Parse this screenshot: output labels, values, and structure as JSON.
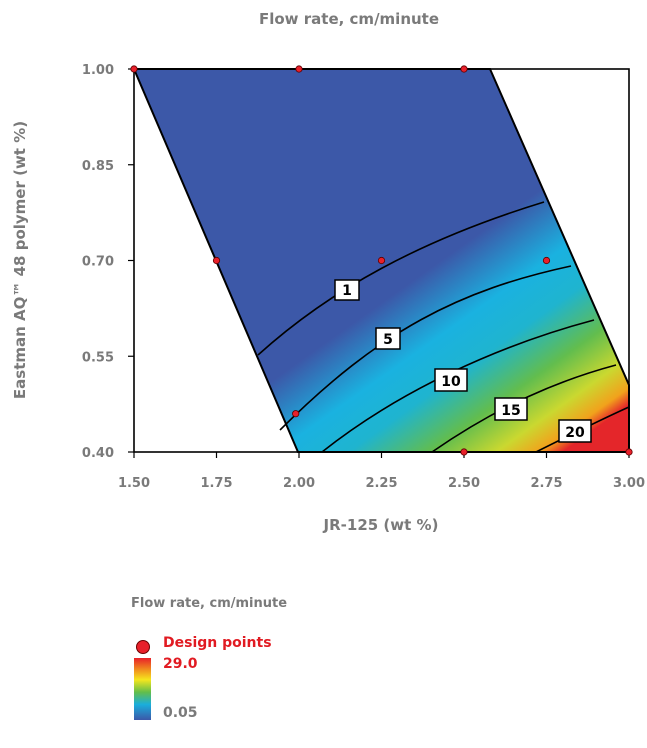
{
  "chart_data": {
    "type": "contour",
    "title": "Flow rate, cm/minute",
    "xlabel": "JR-125 (wt %)",
    "ylabel": "Eastman AQ™ 48 polymer (wt %)",
    "xlim": [
      1.5,
      3.0
    ],
    "ylim": [
      0.4,
      1.0
    ],
    "xticks": [
      "1.50",
      "1.75",
      "2.00",
      "2.25",
      "2.50",
      "2.75",
      "3.00"
    ],
    "yticks": [
      "0.40",
      "0.55",
      "0.70",
      "0.85",
      "1.00"
    ],
    "contour_labels": [
      "1",
      "5",
      "10",
      "15",
      "20"
    ],
    "design_points": [
      {
        "x": 1.5,
        "y": 1.0
      },
      {
        "x": 2.0,
        "y": 1.0
      },
      {
        "x": 2.5,
        "y": 1.0
      },
      {
        "x": 1.75,
        "y": 0.7
      },
      {
        "x": 2.25,
        "y": 0.7
      },
      {
        "x": 2.75,
        "y": 0.7
      },
      {
        "x": 1.99,
        "y": 0.46
      },
      {
        "x": 2.5,
        "y": 0.4
      },
      {
        "x": 3.0,
        "y": 0.4
      }
    ],
    "grid": false
  },
  "legend": {
    "title": "Flow rate, cm/minute",
    "design_points_label": "Design points",
    "max_label": "29.0",
    "min_label": "0.05"
  }
}
